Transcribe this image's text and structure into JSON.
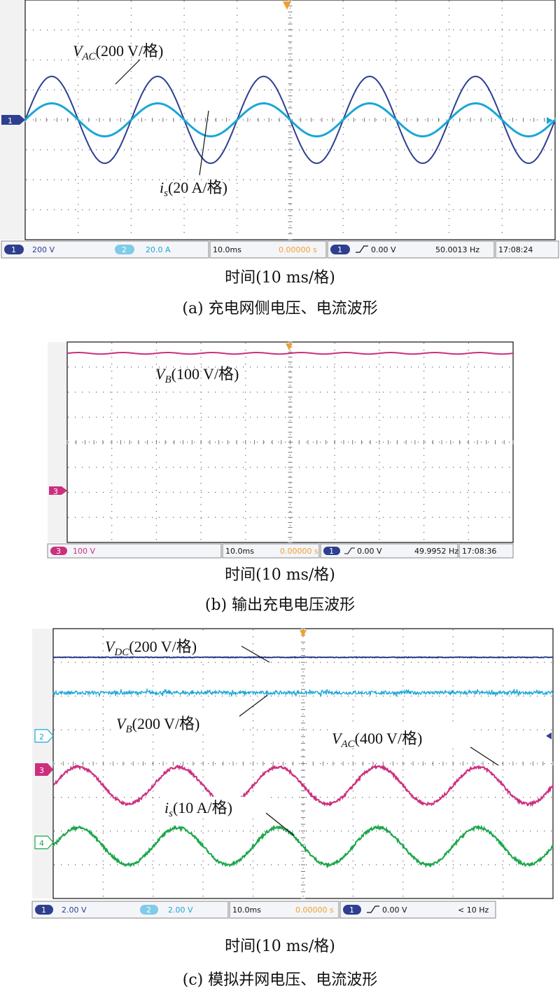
{
  "colors": {
    "dark_blue": "#2e3f8f",
    "cyan": "#1aa7d6",
    "magenta": "#cc2f7e",
    "green": "#1aa54a",
    "orange": "#f0a030",
    "grid": "#6a6a6a"
  },
  "panels": [
    {
      "id": "a",
      "status": {
        "ch1_num": "1",
        "ch1_scale": "200 V",
        "ch2_num": "2",
        "ch2_scale": "20.0 A",
        "timebase": "10.0ms",
        "delay": "0.00000 s",
        "trig_num": "1",
        "trig_level": "0.00 V",
        "freq": "50.0013 Hz",
        "clock": "17:08:24"
      },
      "markers": [
        "1"
      ],
      "time_label": "时间(10 ms/格)",
      "caption": "(a) 充电网侧电压、电流波形"
    },
    {
      "id": "b",
      "status": {
        "ch1_num": "3",
        "ch1_scale": "100 V",
        "timebase": "10.0ms",
        "delay": "0.00000 s",
        "trig_num": "1",
        "trig_level": "0.00 V",
        "freq": "49.9952 Hz",
        "clock": "17:08:36"
      },
      "markers": [
        "3"
      ],
      "time_label": "时间(10 ms/格)",
      "caption": "(b) 输出充电电压波形"
    },
    {
      "id": "c",
      "status": {
        "ch1_num": "1",
        "ch1_scale": "2.00 V",
        "ch2_num": "2",
        "ch2_scale": "2.00 V",
        "timebase": "10.0ms",
        "delay": "0.00000 s",
        "trig_num": "1",
        "trig_level": "0.00 V",
        "freq": "< 10 Hz"
      },
      "markers": [
        "2",
        "3",
        "4"
      ],
      "time_label": "时间(10 ms/格)",
      "caption": "(c) 模拟并网电压、电流波形"
    }
  ],
  "chart_data": [
    {
      "type": "line",
      "xlabel": "时间(10 ms/格)",
      "xlim": [
        0,
        100
      ],
      "x_unit": "ms",
      "series": [
        {
          "name": "V_AC(200 V/格)",
          "kind": "sine",
          "frequency_hz": 50,
          "amplitude_div": 1.45,
          "offset_div": 0,
          "color": "#2e3f8f"
        },
        {
          "name": "i_s(20 A/格)",
          "kind": "sine",
          "frequency_hz": 50,
          "amplitude_div": 0.55,
          "offset_div": 0,
          "color": "#1aa7d6"
        }
      ]
    },
    {
      "type": "line",
      "xlabel": "时间(10 ms/格)",
      "xlim": [
        0,
        100
      ],
      "x_unit": "ms",
      "series": [
        {
          "name": "V_B(100 V/格)",
          "kind": "dc_ripple",
          "level_div": 3.55,
          "ripple_div": 0.03,
          "color": "#cc2f7e"
        }
      ]
    },
    {
      "type": "line",
      "xlabel": "时间(10 ms/格)",
      "xlim": [
        0,
        100
      ],
      "x_unit": "ms",
      "series": [
        {
          "name": "V_DC(200 V/格)",
          "kind": "dc",
          "level_div": 3.15,
          "color": "#2e3f8f"
        },
        {
          "name": "V_B(200 V/格)",
          "kind": "dc_noise",
          "level_div": 2.1,
          "noise_div": 0.1,
          "color": "#1aa7d6"
        },
        {
          "name": "V_AC(400 V/格)",
          "kind": "sine",
          "frequency_hz": 50,
          "amplitude_div": 0.55,
          "offset_div": -0.65,
          "color": "#cc2f7e"
        },
        {
          "name": "i_s(10 A/格)",
          "kind": "sine",
          "frequency_hz": 50,
          "amplitude_div": 0.55,
          "offset_div": -2.45,
          "color": "#1aa54a"
        }
      ]
    }
  ]
}
